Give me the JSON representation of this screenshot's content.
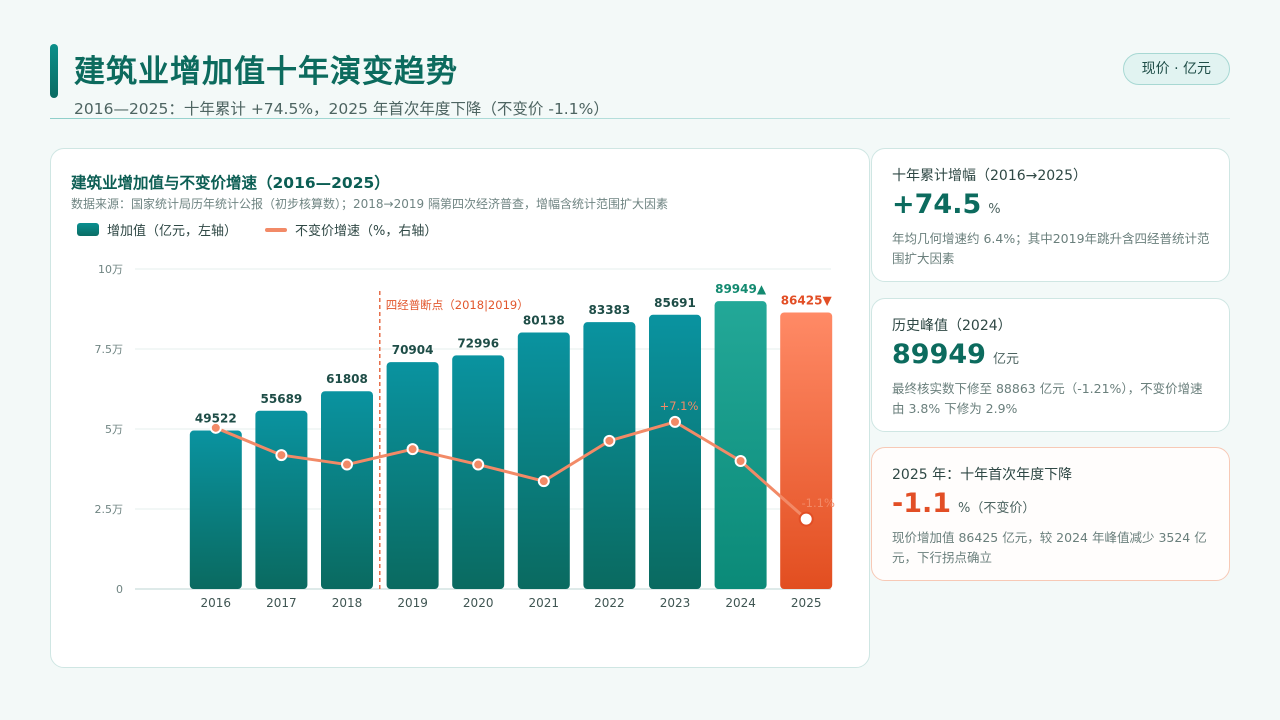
{
  "header": {
    "title": "建筑业增加值十年演变趋势",
    "subtitle": "2016—2025：十年累计 +74.5%，2025 年首次年度下降（不变价 -1.1%）",
    "unit_badge": "现价 · 亿元"
  },
  "chart": {
    "title": "建筑业增加值与不变价增速（2016—2025）",
    "source": "数据来源：国家统计局历年统计公报（初步核算数）；2018→2019 隔第四次经济普查，增幅含统计范围扩大因素",
    "legend_bar": "增加值（亿元，左轴）",
    "legend_line": "不变价增速（%，右轴）"
  },
  "chart_data": {
    "type": "bar",
    "categories": [
      "2016",
      "2017",
      "2018",
      "2019",
      "2020",
      "2021",
      "2022",
      "2023",
      "2024",
      "2025"
    ],
    "series": [
      {
        "name": "增加值（亿元，左轴）",
        "type": "bar",
        "axis": "left",
        "values": [
          49522,
          55689,
          61808,
          70904,
          72996,
          80138,
          83383,
          85691,
          89949,
          86425
        ],
        "labels": [
          "49522",
          "55689",
          "61808",
          "70904",
          "72996",
          "80138",
          "83383",
          "85691",
          "89949▲",
          "86425▼"
        ]
      },
      {
        "name": "不变价增速（%，右轴）",
        "type": "line",
        "axis": "right",
        "values": [
          6.6,
          4.3,
          3.5,
          4.8,
          3.5,
          2.1,
          5.5,
          7.1,
          3.8,
          -1.1
        ],
        "labels": [
          "",
          "",
          "",
          "",
          "",
          "",
          "",
          "+7.1%",
          "",
          "-1.1%"
        ]
      }
    ],
    "y_left": {
      "min": 0,
      "max": 100000,
      "ticks": [
        0,
        25000,
        50000,
        75000,
        100000
      ],
      "tick_labels": [
        "0",
        "2.5万",
        "5万",
        "7.5万",
        "10万"
      ]
    },
    "y_right": {
      "min": -7,
      "max": 20
    },
    "annotation": {
      "text": "四经普断点（2018|2019）",
      "between": [
        "2018",
        "2019"
      ]
    },
    "colors": {
      "bar_top": "#0a93a0",
      "bar_bottom": "#0a6a60",
      "peak_top": "#23a898",
      "peak_bottom": "#0b8a78",
      "decline_top": "#ff8a66",
      "decline_bottom": "#e24e20",
      "line": "#f28a67",
      "label": "#1e4d47",
      "peak_label": "#138a70",
      "decline_label": "#e24e25"
    },
    "grid": true,
    "legend_position": "top-left"
  },
  "kpis": [
    {
      "label": "十年累计增幅（2016→2025）",
      "value": "+74.5",
      "unit": "%",
      "desc": "年均几何增速约 6.4%；其中2019年跳升含四经普统计范围扩大因素"
    },
    {
      "label": "历史峰值（2024）",
      "value": "89949",
      "unit": "亿元",
      "desc": "最终核实数下修至 88863 亿元（-1.21%），不变价增速由 3.8% 下修为 2.9%"
    },
    {
      "label": "2025 年：十年首次年度下降",
      "value": "-1.1",
      "unit": "%（不变价）",
      "desc": "现价增加值 86425 亿元，较 2024 年峰值减少 3524 亿元，下行拐点确立"
    }
  ]
}
